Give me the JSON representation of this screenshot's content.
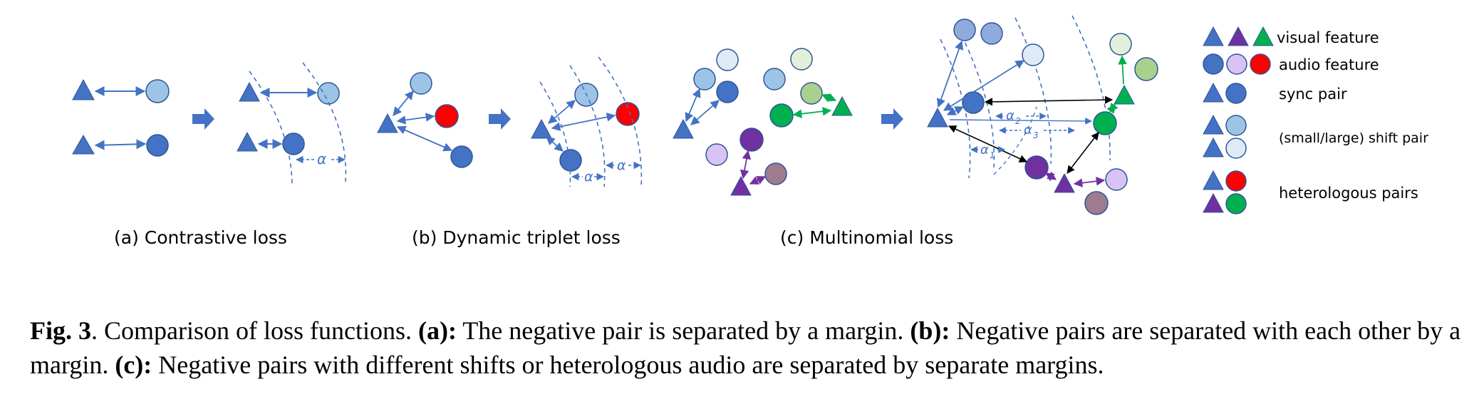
{
  "figure": {
    "panels": [
      {
        "label": "(a) Contrastive loss"
      },
      {
        "label": "(b) Dynamic triplet loss"
      },
      {
        "label": "(c) Multinomial loss"
      }
    ],
    "margin_symbols": {
      "alpha": "α",
      "alpha1": "α",
      "alpha1_sub": "1",
      "alpha2": "α",
      "alpha2_sub": "2",
      "alpha3": "α",
      "alpha3_sub": "3"
    },
    "legend": {
      "items": [
        {
          "label": "visual feature",
          "icon": "triangle-icons"
        },
        {
          "label": "audio feature",
          "icon": "circle-icons"
        },
        {
          "label": "sync pair",
          "icon": "sync-pair-icons"
        },
        {
          "label": "(small/large) shift pair",
          "icon": "shift-pair-icons"
        },
        {
          "label": "heterologous pairs",
          "icon": "heterologous-pair-icons"
        }
      ]
    },
    "colors": {
      "blue": "#4472C4",
      "light_blue": "#9DC3E6",
      "lighter_blue": "#DEEBF7",
      "red": "#FF0000",
      "purple": "#7030A0",
      "light_purple": "#D9C3F5",
      "mauve": "#9E7B8F",
      "green": "#00B050",
      "light_green": "#A9D18E",
      "pale_green": "#E2F0D9",
      "stroke_blue": "#2F5597"
    }
  },
  "caption": {
    "fig_label": "Fig. 3",
    "intro": ". Comparison of loss functions. ",
    "a_label": "(a):",
    "a_text": " The negative pair is separated by a margin. ",
    "b_label": "(b):",
    "b_text": " Negative pairs are separated with each other by a margin. ",
    "c_label": "(c):",
    "c_text": " Negative pairs with different shifts or heterologous audio are separated by separate margins."
  }
}
